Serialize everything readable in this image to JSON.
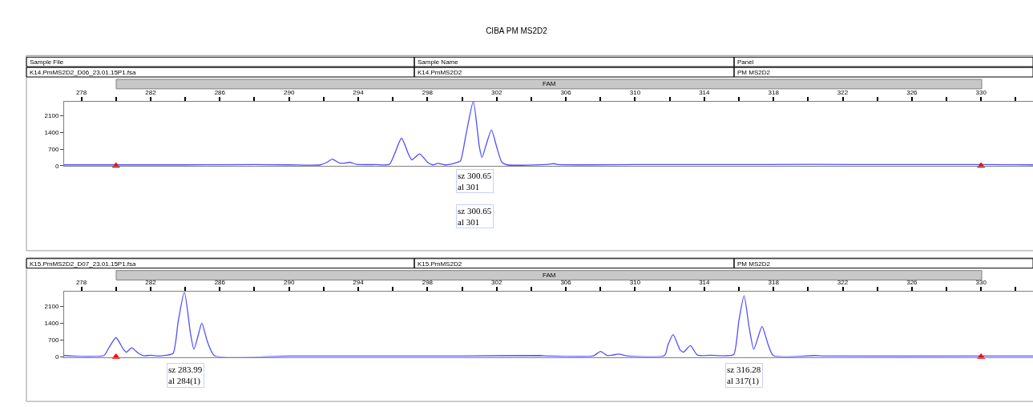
{
  "chart_data": [
    {
      "type": "line",
      "title": "CIBA PM MS2D2",
      "annotations": [
        "Sample File",
        "Sample Name",
        "Panel",
        "K14.PmMS2D2_D06_23.01.15P1.fsa",
        "K14.PmMS2D2",
        "PM MS2D2",
        "FAM",
        "sz 300.65\nal 301",
        "sz 300.65\nal 301"
      ],
      "series": [
        {
          "color": "#5050ff",
          "marker": "none",
          "x": [
            277,
            280,
            284,
            288,
            290,
            291.8,
            292.2,
            292.5,
            292.9,
            293.2,
            293.5,
            293.9,
            295,
            295.8,
            296.1,
            296.5,
            296.9,
            297.1,
            297.55,
            298,
            298.3,
            298.6,
            299,
            299.3,
            299.6,
            299.9,
            300.2,
            300.65,
            301.0,
            301.15,
            301.4,
            301.7,
            302.0,
            302.3,
            302.6,
            305,
            305.3,
            305.6,
            310,
            315,
            320,
            325,
            330,
            333
          ],
          "values": [
            40,
            40,
            40,
            50,
            40,
            40,
            150,
            280,
            120,
            110,
            150,
            60,
            50,
            60,
            500,
            1160,
            500,
            250,
            500,
            150,
            40,
            100,
            40,
            60,
            120,
            200,
            1200,
            2700,
            800,
            350,
            900,
            1510,
            800,
            150,
            40,
            60,
            90,
            50,
            50,
            50,
            60,
            50,
            50,
            40
          ]
        },
        {
          "type": "scatter",
          "color": "#ff0000",
          "marker": "triangle",
          "x": [
            280,
            330
          ],
          "values": [
            0,
            0
          ]
        }
      ],
      "xlim": [
        277,
        333
      ],
      "xticks": [
        278,
        {
          "value": 280,
          "label": null
        },
        282,
        {
          "value": 284,
          "label": null
        },
        286,
        {
          "value": 288,
          "label": null
        },
        290,
        {
          "value": 292,
          "label": null
        },
        294,
        {
          "value": 296,
          "label": null
        },
        298,
        {
          "value": 300,
          "label": null
        },
        302,
        {
          "value": 304,
          "label": null
        },
        306,
        {
          "value": 308,
          "label": null
        },
        310,
        {
          "value": 312,
          "label": null
        },
        314,
        {
          "value": 316,
          "label": null
        },
        318,
        {
          "value": 320,
          "label": null
        },
        322,
        {
          "value": 324,
          "label": null
        },
        326,
        {
          "value": 328,
          "label": null
        },
        330,
        {
          "value": 332,
          "label": null
        }
      ],
      "ylim": [
        0,
        2700
      ],
      "yticks": [
        0,
        700,
        1400,
        2100
      ]
    },
    {
      "type": "line",
      "annotations": [
        "K15.PmMS2D2_D07_23.01.15P1.fsa",
        "K15.PmMS2D2",
        "PM MS2D2",
        "FAM",
        "sz 283.99\nal 284(1)",
        "sz 316.28\nal 317(1)"
      ],
      "series": [
        {
          "color": "#5050ff",
          "marker": "none",
          "x": [
            277,
            277.5,
            279.3,
            279.6,
            280.0,
            280.4,
            280.6,
            280.9,
            281.3,
            281.6,
            282,
            282.4,
            282.9,
            283.3,
            283.6,
            283.95,
            284.3,
            284.5,
            284.75,
            284.96,
            285.3,
            285.7,
            290,
            295,
            300,
            304.5,
            305,
            307.6,
            308.0,
            308.4,
            308.7,
            309.07,
            309.5,
            311.7,
            311.9,
            312.2,
            312.6,
            312.8,
            313.2,
            313.6,
            314.35,
            315.2,
            315.7,
            316.0,
            316.3,
            316.6,
            316.86,
            317.1,
            317.34,
            317.7,
            318.0,
            320.4,
            321,
            330,
            333
          ],
          "values": [
            60,
            40,
            60,
            400,
            800,
            350,
            200,
            380,
            150,
            50,
            70,
            40,
            70,
            150,
            1500,
            2700,
            1000,
            320,
            900,
            1400,
            600,
            50,
            40,
            40,
            40,
            60,
            40,
            50,
            230,
            60,
            80,
            120,
            50,
            60,
            500,
            930,
            300,
            200,
            470,
            80,
            70,
            50,
            100,
            1500,
            2540,
            1200,
            320,
            800,
            1270,
            500,
            50,
            60,
            40,
            40,
            40
          ]
        },
        {
          "type": "scatter",
          "color": "#ff0000",
          "marker": "triangle",
          "x": [
            280,
            330
          ],
          "values": [
            0,
            0
          ]
        }
      ],
      "xlim": [
        277,
        333
      ],
      "xticks": [
        278,
        {
          "value": 280,
          "label": null
        },
        282,
        {
          "value": 284,
          "label": null
        },
        286,
        {
          "value": 288,
          "label": null
        },
        290,
        {
          "value": 292,
          "label": null
        },
        294,
        {
          "value": 296,
          "label": null
        },
        298,
        {
          "value": 300,
          "label": null
        },
        302,
        {
          "value": 304,
          "label": null
        },
        306,
        {
          "value": 308,
          "label": null
        },
        310,
        {
          "value": 312,
          "label": null
        },
        314,
        {
          "value": 316,
          "label": null
        },
        318,
        {
          "value": 320,
          "label": null
        },
        322,
        {
          "value": 324,
          "label": null
        },
        326,
        {
          "value": 328,
          "label": null
        },
        330,
        {
          "value": 332,
          "label": null
        }
      ],
      "ylim": [
        0,
        2700
      ],
      "yticks": [
        0,
        700,
        1400,
        2100
      ]
    }
  ]
}
